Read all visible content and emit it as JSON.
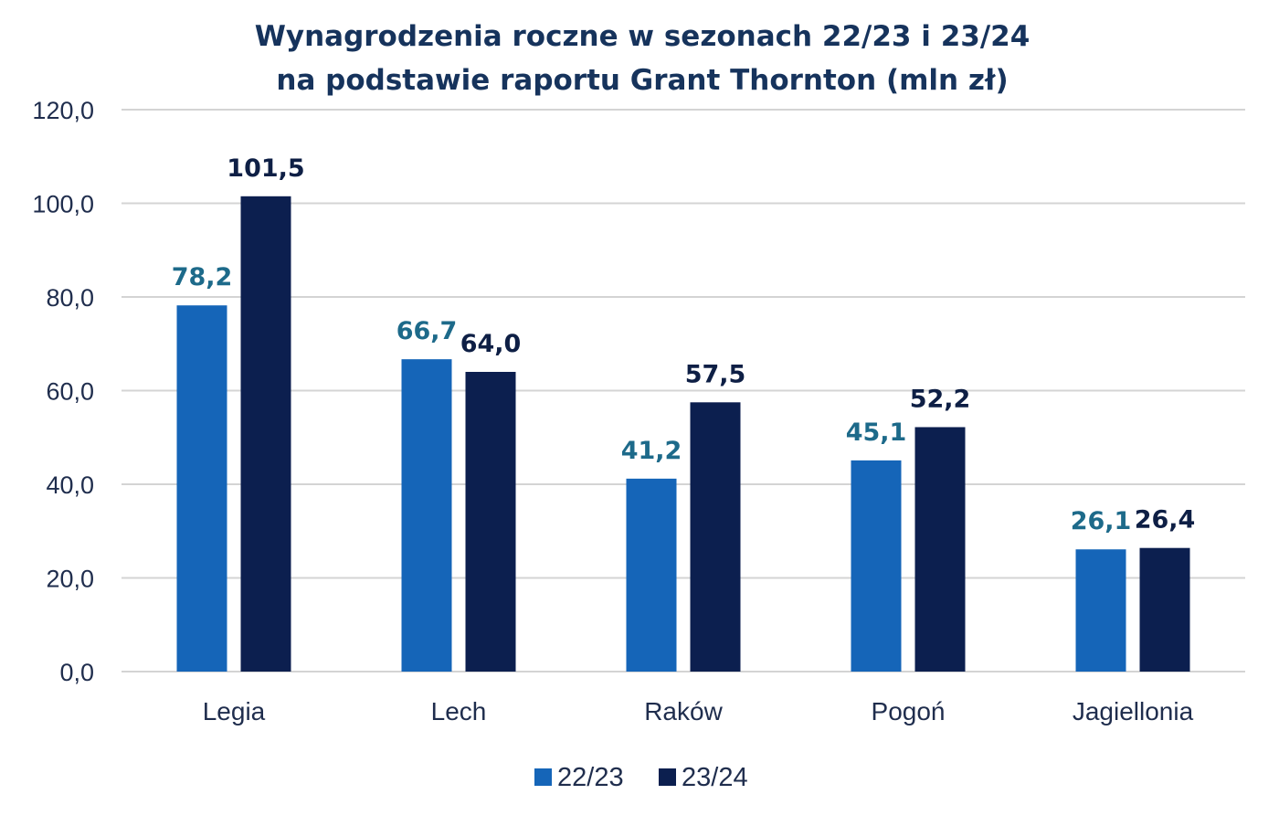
{
  "chart_data": {
    "type": "bar",
    "title": "Wynagrodzenia  roczne  w  sezonach  22/23   i 23/24",
    "subtitle": "na podstawie raportu Grant Thornton (mln zł)",
    "categories": [
      "Legia",
      "Lech",
      "Raków",
      "Pogoń",
      "Jagiellonia"
    ],
    "series": [
      {
        "name": "22/23",
        "values": [
          78.2,
          66.7,
          41.2,
          45.1,
          26.1
        ],
        "color": "#1565b8",
        "labels": [
          "78,2",
          "66,7",
          "41,2",
          "45,1",
          "26,1"
        ]
      },
      {
        "name": "23/24",
        "values": [
          101.5,
          64.0,
          57.5,
          52.2,
          26.4
        ],
        "color": "#0c1f4f",
        "labels": [
          "101,5",
          "64,0",
          "57,5",
          "52,2",
          "26,4"
        ]
      }
    ],
    "ylim": [
      0,
      120
    ],
    "yticks": [
      0,
      20,
      40,
      60,
      80,
      100,
      120
    ],
    "ytick_labels": [
      "0,0",
      "20,0",
      "40,0",
      "60,0",
      "80,0",
      "100,0",
      "120,0"
    ],
    "xlabel": "",
    "ylabel": "",
    "grid": true,
    "legend_position": "bottom"
  }
}
